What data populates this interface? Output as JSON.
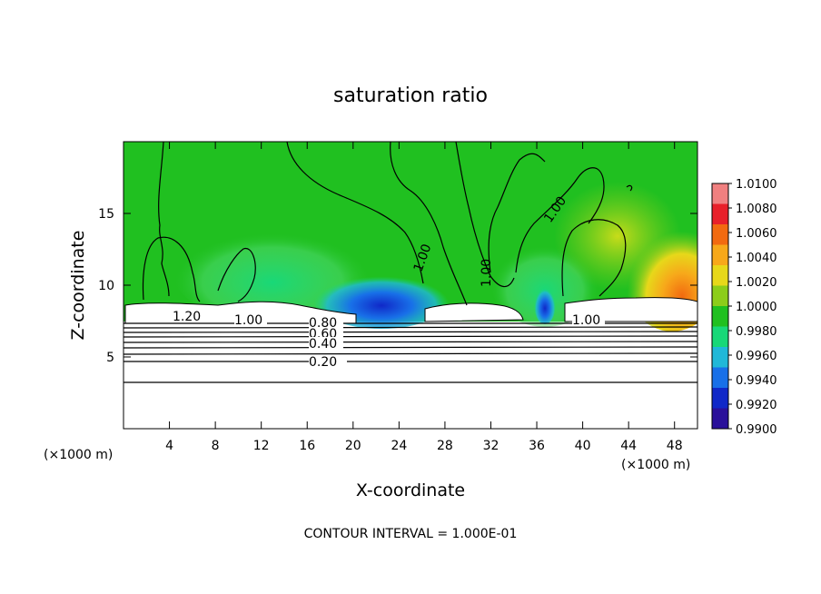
{
  "chart_data": {
    "type": "contour",
    "title": "saturation ratio",
    "xlabel": "X-coordinate",
    "ylabel": "Z-coordinate",
    "x_unit": "(×1000 m)",
    "z_unit": "(×1000 m)",
    "xlim": [
      0,
      50
    ],
    "ylim": [
      0,
      20
    ],
    "x_ticks": [
      4,
      8,
      12,
      16,
      20,
      24,
      28,
      32,
      36,
      40,
      44,
      48
    ],
    "y_ticks": [
      5,
      10,
      15
    ],
    "colorbar": {
      "levels": [
        "1.0100",
        "1.0080",
        "1.0060",
        "1.0040",
        "1.0020",
        "1.0000",
        "0.9980",
        "0.9960",
        "0.9940",
        "0.9920",
        "0.9900"
      ],
      "colors": [
        "#f08080",
        "#e8202a",
        "#f26a10",
        "#f7a81a",
        "#e7d81a",
        "#8ccd1a",
        "#20c020",
        "#18d878",
        "#20b8d8",
        "#1870e8",
        "#1028c8",
        "#2a109a"
      ]
    },
    "contour_labels": [
      {
        "text": "1.20"
      },
      {
        "text": "1.00"
      },
      {
        "text": "0.80"
      },
      {
        "text": "0.60"
      },
      {
        "text": "0.40"
      },
      {
        "text": "0.20"
      },
      {
        "text": "1.00"
      },
      {
        "text": "1.00"
      },
      {
        "text": "1.00"
      },
      {
        "text": "1.00"
      }
    ],
    "contour_interval": "CONTOUR INTERVAL = 1.000E-01"
  }
}
